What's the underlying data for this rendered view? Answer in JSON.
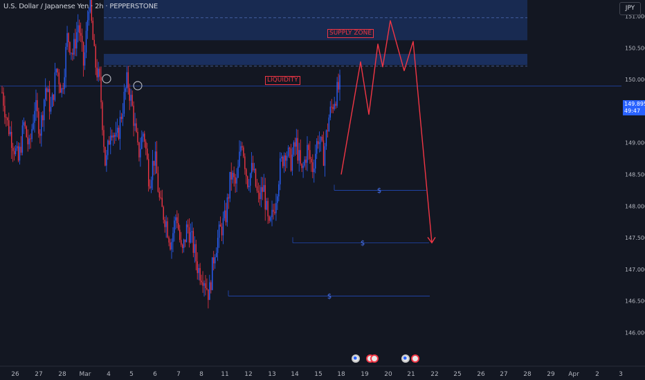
{
  "header": {
    "symbol": "U.S. Dollar / Japanese Yen · 2h · PEPPERSTONE",
    "currency": "JPY"
  },
  "price_tag": {
    "price": "149.895",
    "countdown": "49:47"
  },
  "annotations": {
    "supply_zone": "SUPPLY ZONE",
    "liquidity": "LIQUIDITY",
    "target_marker": "$"
  },
  "colors": {
    "background": "#131722",
    "bull": "#2962ff",
    "bear": "#f23645",
    "zone_fill": "#1e3a78",
    "projection": "#f23645",
    "current_price": "#2962ff"
  },
  "event_icons": [
    "us",
    "jp",
    "jp",
    "us",
    "jp"
  ],
  "chart_data": {
    "type": "candlestick",
    "title": "U.S. Dollar / Japanese Yen · 2h · PEPPERSTONE",
    "ylim": [
      145.9,
      151.4
    ],
    "y_ticks": [
      "146.000",
      "146.500",
      "147.000",
      "147.500",
      "148.000",
      "148.500",
      "149.000",
      "149.500",
      "150.000",
      "150.500",
      "151.000"
    ],
    "x_tick_labels": [
      "26",
      "27",
      "28",
      "Mar",
      "4",
      "5",
      "6",
      "7",
      "8",
      "11",
      "12",
      "13",
      "14",
      "15",
      "18",
      "19",
      "20",
      "21",
      "22",
      "25",
      "26",
      "27",
      "28",
      "29",
      "Apr",
      "2",
      "3"
    ],
    "current_price": 149.895,
    "supply_zone": [
      150.62,
      151.33
    ],
    "liquidity_zone": [
      150.2,
      150.35
    ],
    "liquidity_levels": [
      150.28,
      149.98
    ],
    "target_levels": [
      148.25,
      147.42,
      146.58
    ],
    "projection_path": [
      148.5,
      150.28,
      149.45,
      150.56,
      150.2,
      150.93,
      150.14,
      150.6,
      147.42
    ],
    "price_path": [
      149.8,
      149.3,
      149.0,
      148.7,
      149.3,
      148.9,
      149.6,
      149.2,
      149.9,
      149.5,
      150.2,
      149.8,
      150.7,
      150.4,
      150.9,
      150.2,
      151.3,
      150.3,
      149.9,
      148.6,
      149.3,
      149.0,
      149.5,
      150.0,
      149.5,
      148.8,
      149.2,
      148.4,
      148.8,
      148.0,
      147.8,
      147.4,
      147.9,
      147.2,
      147.7,
      147.4,
      147.0,
      146.9,
      146.6,
      147.3,
      147.6,
      147.8,
      148.5,
      148.3,
      149.1,
      148.4,
      148.6,
      148.1,
      148.3,
      147.6,
      148.0,
      148.6,
      148.9,
      148.7,
      149.0,
      148.5,
      148.9,
      148.6,
      149.1,
      148.8,
      149.4,
      149.7,
      149.9
    ]
  }
}
